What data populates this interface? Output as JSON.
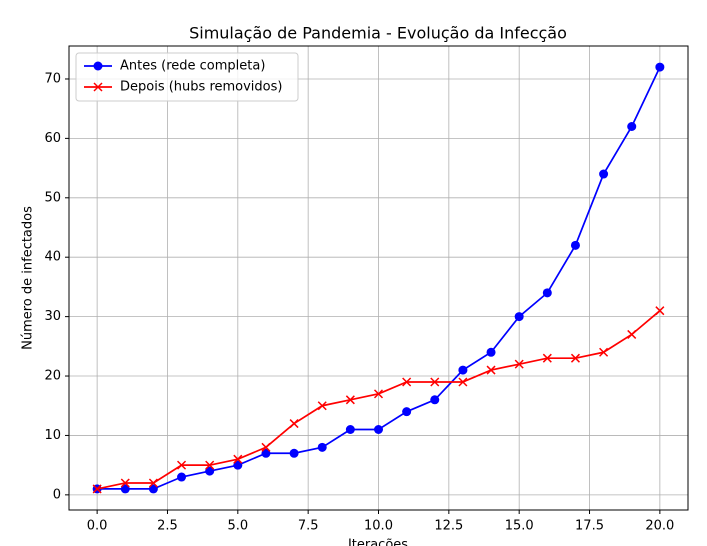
{
  "chart_data": {
    "type": "line",
    "title": "Simulação de Pandemia - Evolução da Infecção",
    "x_label": "Iterações",
    "y_label": "Número de infectados",
    "x": [
      0,
      1,
      2,
      3,
      4,
      5,
      6,
      7,
      8,
      9,
      10,
      11,
      12,
      13,
      14,
      15,
      16,
      17,
      18,
      19,
      20
    ],
    "series": [
      {
        "name": "Antes (rede completa)",
        "color": "#0000ff",
        "marker": "o",
        "values": [
          1,
          1,
          1,
          3,
          4,
          5,
          7,
          7,
          8,
          11,
          11,
          14,
          16,
          21,
          24,
          30,
          34,
          42,
          54,
          62,
          72
        ]
      },
      {
        "name": "Depois (hubs removidos)",
        "color": "#ff0000",
        "marker": "x",
        "values": [
          1,
          2,
          2,
          5,
          5,
          6,
          8,
          12,
          15,
          16,
          17,
          19,
          19,
          19,
          21,
          22,
          23,
          23,
          24,
          27,
          31
        ]
      }
    ],
    "xlim": [
      -1,
      21
    ],
    "ylim": [
      -2.55,
      75.55
    ],
    "xticks": [
      {
        "value": 0,
        "label": "0.0"
      },
      2.5,
      {
        "value": 5,
        "label": "5.0"
      },
      7.5,
      {
        "value": 10,
        "label": "10.0"
      },
      12.5,
      {
        "value": 15,
        "label": "15.0"
      },
      17.5,
      {
        "value": 20,
        "label": "20.0"
      }
    ],
    "yticks": [
      0,
      10,
      20,
      30,
      40,
      50,
      60,
      70
    ],
    "grid": true,
    "legend": "upper left"
  }
}
